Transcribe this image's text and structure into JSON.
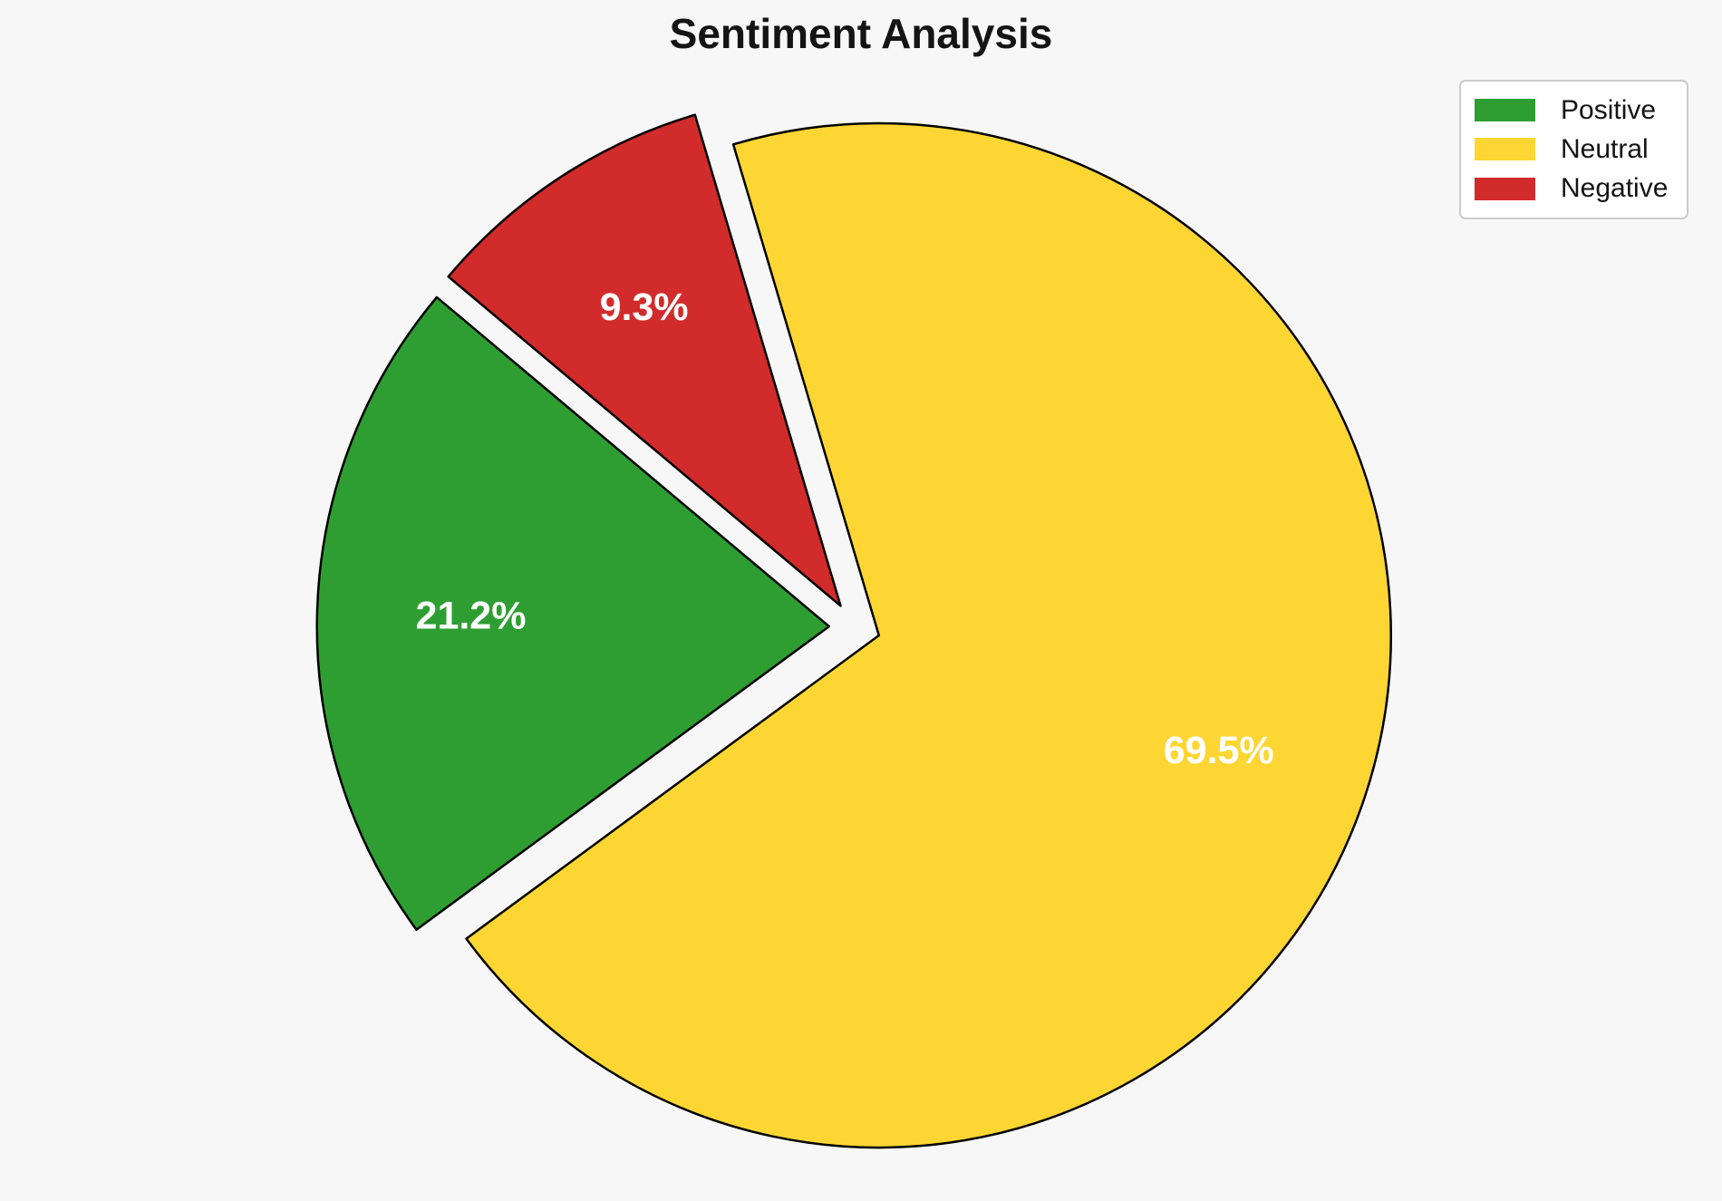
{
  "title": "Sentiment Analysis",
  "background": "#f7f7f7",
  "legend": {
    "position": "upper right",
    "items": [
      {
        "label": "Positive",
        "color": "#2e9e32"
      },
      {
        "label": "Neutral",
        "color": "#fdd633"
      },
      {
        "label": "Negative",
        "color": "#d22b2b"
      }
    ]
  },
  "chart_data": {
    "type": "pie",
    "title": "Sentiment Analysis",
    "labels": [
      "Positive",
      "Neutral",
      "Negative"
    ],
    "values": [
      21.2,
      69.5,
      9.3
    ],
    "pct_labels": [
      "21.2%",
      "69.5%",
      "9.3%"
    ],
    "colors": [
      "#2e9e32",
      "#fdd633",
      "#d22b2b"
    ],
    "start_angle": 140,
    "counterclock": true,
    "explode": [
      0.05,
      0.05,
      0.05
    ],
    "pct_distance": 0.7,
    "edge_color": "#000000",
    "edge_width": 2.5,
    "label_color": "#ffffff",
    "legend_position": "upper right",
    "legend_entries": [
      "Positive",
      "Neutral",
      "Negative"
    ]
  }
}
